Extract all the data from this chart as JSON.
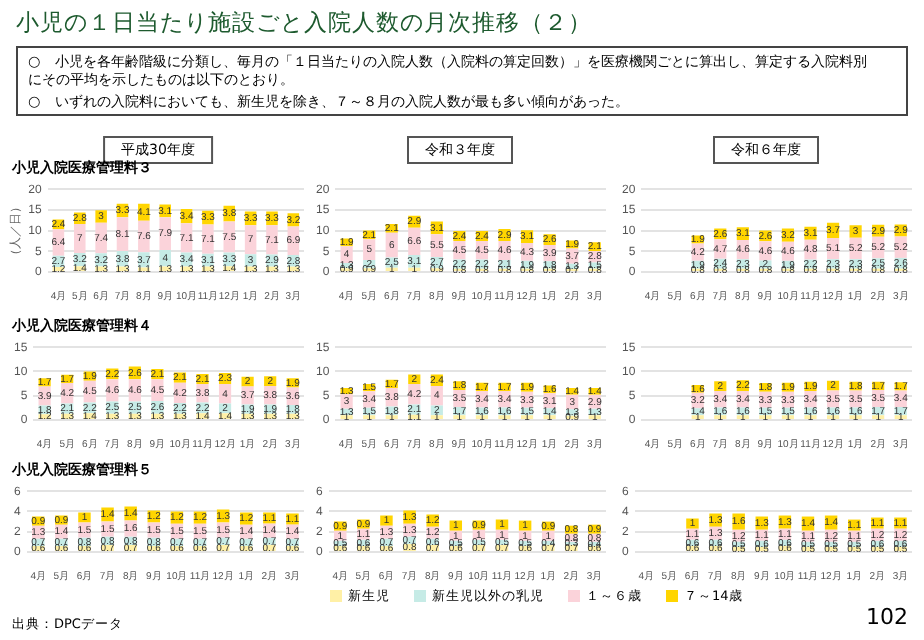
{
  "chart_data": [
    {
      "type": "bar",
      "stacked": true,
      "title": "平成30年度",
      "subtitle": "小児入院医療管理料３",
      "ylabel": "（人／日）",
      "categories": [
        "4月",
        "5月",
        "6月",
        "7月",
        "8月",
        "9月",
        "10月",
        "11月",
        "12月",
        "1月",
        "2月",
        "3月"
      ],
      "ylim": [
        0,
        20
      ],
      "yticks": [
        0,
        5,
        10,
        15,
        20
      ],
      "grid": "y",
      "data_labels": true,
      "legend": false,
      "annotations": [
        "小児の１日当たり施設ごと入院人数の月次推移（２）",
        "○　小児を各年齢階級に分類し、毎月の「１日当たりの入院人数（入院料の算定回数）」を医療機関ごとに算出し、算定する入院料別にその平均を示したものは以下のとおり。",
        "○　いずれの入院料においても、新生児を除き、７～８月の入院人数が最も多い傾向があった。",
        "出典：DPCデータ",
        "102"
      ],
      "series": [
        {
          "color": "#fff0a6",
          "values": [
            1.2,
            1.4,
            1.3,
            1.3,
            1.1,
            1.3,
            1.3,
            1.3,
            1.4,
            1.3,
            1.3,
            1.3
          ]
        },
        {
          "color": "#c6ebe6",
          "values": [
            2.7,
            3.2,
            3.2,
            3.8,
            3.7,
            4.0,
            3.4,
            3.1,
            3.3,
            3.0,
            2.9,
            2.8
          ]
        },
        {
          "color": "#fbd3da",
          "values": [
            6.4,
            7.0,
            7.4,
            8.1,
            7.6,
            7.9,
            7.1,
            7.1,
            7.5,
            7.0,
            7.1,
            6.9
          ]
        },
        {
          "color": "#ffd500",
          "values": [
            2.4,
            2.8,
            3.0,
            3.3,
            4.1,
            3.1,
            3.4,
            3.3,
            3.8,
            3.3,
            3.3,
            3.2
          ]
        }
      ]
    },
    {
      "type": "bar",
      "stacked": true,
      "title": "令和３年度",
      "categories": [
        "4月",
        "5月",
        "6月",
        "7月",
        "8月",
        "9月",
        "10月",
        "11月",
        "12月",
        "1月",
        "2月",
        "3月"
      ],
      "ylim": [
        0,
        20
      ],
      "yticks": [
        0,
        5,
        10,
        15,
        20
      ],
      "grid": "y",
      "data_labels": true,
      "legend": false,
      "series": [
        {
          "color": "#fff0a6",
          "values": [
            0.9,
            0.9,
            1.0,
            1.0,
            0.9,
            0.8,
            0.8,
            0.8,
            0.8,
            0.8,
            0.7,
            0.8
          ]
        },
        {
          "color": "#c6ebe6",
          "values": [
            1.3,
            2.0,
            2.5,
            3.1,
            2.7,
            2.2,
            2.2,
            2.1,
            1.9,
            1.8,
            1.3,
            1.5
          ]
        },
        {
          "color": "#fbd3da",
          "values": [
            4.0,
            5.0,
            6.0,
            6.6,
            5.5,
            4.5,
            4.5,
            4.6,
            4.3,
            3.9,
            3.7,
            2.8
          ]
        },
        {
          "color": "#ffd500",
          "values": [
            1.9,
            2.1,
            2.1,
            2.9,
            3.1,
            2.4,
            2.4,
            2.9,
            3.1,
            2.6,
            1.9,
            2.1
          ]
        }
      ]
    },
    {
      "type": "bar",
      "stacked": true,
      "title": "令和６年度",
      "categories": [
        "4月",
        "5月",
        "6月",
        "7月",
        "8月",
        "9月",
        "10月",
        "11月",
        "12月",
        "1月",
        "2月",
        "3月"
      ],
      "ylim": [
        0,
        20
      ],
      "yticks": [
        0,
        5,
        10,
        15,
        20
      ],
      "grid": "y",
      "data_labels": true,
      "legend": false,
      "series": [
        {
          "color": "#fff0a6",
          "values": [
            null,
            null,
            0.8,
            0.8,
            0.8,
            0.8,
            0.8,
            0.8,
            0.8,
            0.8,
            0.8,
            0.8
          ]
        },
        {
          "color": "#c6ebe6",
          "values": [
            null,
            null,
            1.9,
            2.4,
            2.3,
            2.0,
            1.9,
            2.2,
            2.3,
            2.3,
            2.5,
            2.6
          ]
        },
        {
          "color": "#fbd3da",
          "values": [
            null,
            null,
            4.2,
            4.7,
            4.6,
            4.6,
            4.6,
            4.8,
            5.1,
            5.2,
            5.2,
            5.2
          ]
        },
        {
          "color": "#ffd500",
          "values": [
            null,
            null,
            1.9,
            2.6,
            3.1,
            2.6,
            3.2,
            3.1,
            3.7,
            3.0,
            2.9,
            2.9
          ]
        }
      ]
    },
    {
      "type": "bar",
      "stacked": true,
      "subtitle": "小児入院医療管理料４",
      "categories": [
        "4月",
        "5月",
        "6月",
        "7月",
        "8月",
        "9月",
        "10月",
        "11月",
        "12月",
        "1月",
        "2月",
        "3月"
      ],
      "ylim": [
        0,
        15
      ],
      "yticks": [
        0,
        5,
        10,
        15
      ],
      "grid": "y",
      "data_labels": true,
      "legend": false,
      "series": [
        {
          "color": "#fff0a6",
          "values": [
            1.2,
            1.3,
            1.4,
            1.3,
            1.3,
            1.3,
            1.3,
            1.4,
            1.4,
            1.3,
            1.3,
            1.3
          ]
        },
        {
          "color": "#c6ebe6",
          "values": [
            1.8,
            2.1,
            2.2,
            2.5,
            2.5,
            2.6,
            2.2,
            2.2,
            2.0,
            1.9,
            1.9,
            1.8
          ]
        },
        {
          "color": "#fbd3da",
          "values": [
            3.9,
            4.2,
            4.5,
            4.6,
            4.6,
            4.5,
            4.2,
            3.8,
            4.0,
            3.7,
            3.8,
            3.6
          ]
        },
        {
          "color": "#ffd500",
          "values": [
            1.7,
            1.7,
            1.9,
            2.2,
            2.6,
            2.1,
            2.1,
            2.1,
            2.3,
            2.0,
            2.0,
            1.9
          ]
        }
      ]
    },
    {
      "type": "bar",
      "stacked": true,
      "categories": [
        "4月",
        "5月",
        "6月",
        "7月",
        "8月",
        "9月",
        "10月",
        "11月",
        "12月",
        "1月",
        "2月",
        "3月"
      ],
      "ylim": [
        0,
        15
      ],
      "yticks": [
        0,
        5,
        10,
        15
      ],
      "grid": "y",
      "data_labels": true,
      "legend": false,
      "series": [
        {
          "color": "#fff0a6",
          "values": [
            1.0,
            1.0,
            1.0,
            1.1,
            1.0,
            1.0,
            1.0,
            1.0,
            1.0,
            1.0,
            0.9,
            1.0
          ]
        },
        {
          "color": "#c6ebe6",
          "values": [
            1.3,
            1.5,
            1.8,
            2.1,
            2.0,
            1.7,
            1.6,
            1.6,
            1.5,
            1.4,
            1.3,
            1.3
          ]
        },
        {
          "color": "#fbd3da",
          "values": [
            3.0,
            3.4,
            3.8,
            4.2,
            4.0,
            3.5,
            3.4,
            3.4,
            3.3,
            3.1,
            3.0,
            2.9
          ]
        },
        {
          "color": "#ffd500",
          "values": [
            1.3,
            1.5,
            1.7,
            2.0,
            2.4,
            1.8,
            1.7,
            1.7,
            1.9,
            1.6,
            1.4,
            1.4
          ]
        }
      ]
    },
    {
      "type": "bar",
      "stacked": true,
      "categories": [
        "4月",
        "5月",
        "6月",
        "7月",
        "8月",
        "9月",
        "10月",
        "11月",
        "12月",
        "1月",
        "2月",
        "3月"
      ],
      "ylim": [
        0,
        15
      ],
      "yticks": [
        0,
        5,
        10,
        15
      ],
      "grid": "y",
      "data_labels": true,
      "legend": false,
      "series": [
        {
          "color": "#fff0a6",
          "values": [
            null,
            null,
            1.0,
            1.0,
            1.0,
            1.0,
            1.0,
            1.0,
            1.0,
            1.0,
            1.0,
            1.0
          ]
        },
        {
          "color": "#c6ebe6",
          "values": [
            null,
            null,
            1.4,
            1.6,
            1.6,
            1.5,
            1.5,
            1.6,
            1.6,
            1.6,
            1.7,
            1.7
          ]
        },
        {
          "color": "#fbd3da",
          "values": [
            null,
            null,
            3.2,
            3.4,
            3.4,
            3.3,
            3.3,
            3.4,
            3.5,
            3.5,
            3.5,
            3.4
          ]
        },
        {
          "color": "#ffd500",
          "values": [
            null,
            null,
            1.6,
            2.0,
            2.2,
            1.8,
            1.9,
            1.9,
            2.0,
            1.8,
            1.7,
            1.7
          ]
        }
      ]
    },
    {
      "type": "bar",
      "stacked": true,
      "subtitle": "小児入院医療管理料５",
      "categories": [
        "4月",
        "5月",
        "6月",
        "7月",
        "8月",
        "9月",
        "10月",
        "11月",
        "12月",
        "1月",
        "2月",
        "3月"
      ],
      "ylim": [
        0,
        6
      ],
      "yticks": [
        0,
        2,
        4,
        6
      ],
      "grid": "y",
      "data_labels": true,
      "legend": false,
      "series": [
        {
          "color": "#fff0a6",
          "values": [
            0.6,
            0.6,
            0.6,
            0.7,
            0.7,
            0.6,
            0.6,
            0.6,
            0.7,
            0.6,
            0.7,
            0.6
          ]
        },
        {
          "color": "#c6ebe6",
          "values": [
            0.7,
            0.7,
            0.8,
            0.8,
            0.8,
            0.8,
            0.7,
            0.7,
            0.7,
            0.7,
            0.7,
            0.7
          ]
        },
        {
          "color": "#fbd3da",
          "values": [
            1.3,
            1.4,
            1.5,
            1.5,
            1.6,
            1.5,
            1.5,
            1.5,
            1.5,
            1.4,
            1.4,
            1.4
          ]
        },
        {
          "color": "#ffd500",
          "values": [
            0.9,
            0.9,
            1.0,
            1.4,
            1.4,
            1.2,
            1.2,
            1.2,
            1.3,
            1.2,
            1.1,
            1.1
          ]
        }
      ]
    },
    {
      "type": "bar",
      "stacked": true,
      "categories": [
        "4月",
        "5月",
        "6月",
        "7月",
        "8月",
        "9月",
        "10月",
        "11月",
        "12月",
        "1月",
        "2月",
        "3月"
      ],
      "ylim": [
        0,
        6
      ],
      "yticks": [
        0,
        2,
        4,
        6
      ],
      "grid": "y",
      "data_labels": true,
      "legend": false,
      "series": [
        {
          "color": "#fff0a6",
          "values": [
            0.6,
            0.6,
            0.6,
            0.8,
            0.7,
            0.6,
            0.7,
            0.7,
            0.6,
            0.7,
            0.7,
            0.6
          ]
        },
        {
          "color": "#c6ebe6",
          "values": [
            0.5,
            0.6,
            0.7,
            0.7,
            0.6,
            0.5,
            0.5,
            0.5,
            0.5,
            0.4,
            0.3,
            0.4
          ]
        },
        {
          "color": "#fbd3da",
          "values": [
            1.0,
            1.1,
            1.3,
            1.3,
            1.2,
            1.0,
            1.0,
            1.0,
            1.0,
            1.0,
            0.8,
            0.8
          ]
        },
        {
          "color": "#ffd500",
          "values": [
            0.9,
            0.9,
            1.0,
            1.3,
            1.2,
            1.0,
            0.9,
            1.0,
            1.0,
            0.9,
            0.8,
            0.9
          ]
        }
      ]
    },
    {
      "type": "bar",
      "stacked": true,
      "categories": [
        "4月",
        "5月",
        "6月",
        "7月",
        "8月",
        "9月",
        "10月",
        "11月",
        "12月",
        "1月",
        "2月",
        "3月"
      ],
      "ylim": [
        0,
        6
      ],
      "yticks": [
        0,
        2,
        4,
        6
      ],
      "grid": "y",
      "data_labels": true,
      "legend": "bottom",
      "series": [
        {
          "name": "新生児",
          "color": "#fff0a6",
          "values": [
            null,
            null,
            0.6,
            0.6,
            0.5,
            0.5,
            0.6,
            0.5,
            0.5,
            0.5,
            0.5,
            0.5
          ]
        },
        {
          "name": "新生児以外の乳児",
          "color": "#c6ebe6",
          "values": [
            null,
            null,
            0.6,
            0.6,
            0.5,
            0.6,
            0.6,
            0.5,
            0.5,
            0.5,
            0.6,
            0.6
          ]
        },
        {
          "name": "１～６歳",
          "color": "#fbd3da",
          "values": [
            null,
            null,
            1.1,
            1.3,
            1.2,
            1.1,
            1.1,
            1.1,
            1.2,
            1.1,
            1.2,
            1.2
          ]
        },
        {
          "name": "７～14歳",
          "color": "#ffd500",
          "values": [
            null,
            null,
            1.0,
            1.3,
            1.6,
            1.3,
            1.3,
            1.4,
            1.4,
            1.1,
            1.1,
            1.1
          ]
        }
      ]
    }
  ]
}
